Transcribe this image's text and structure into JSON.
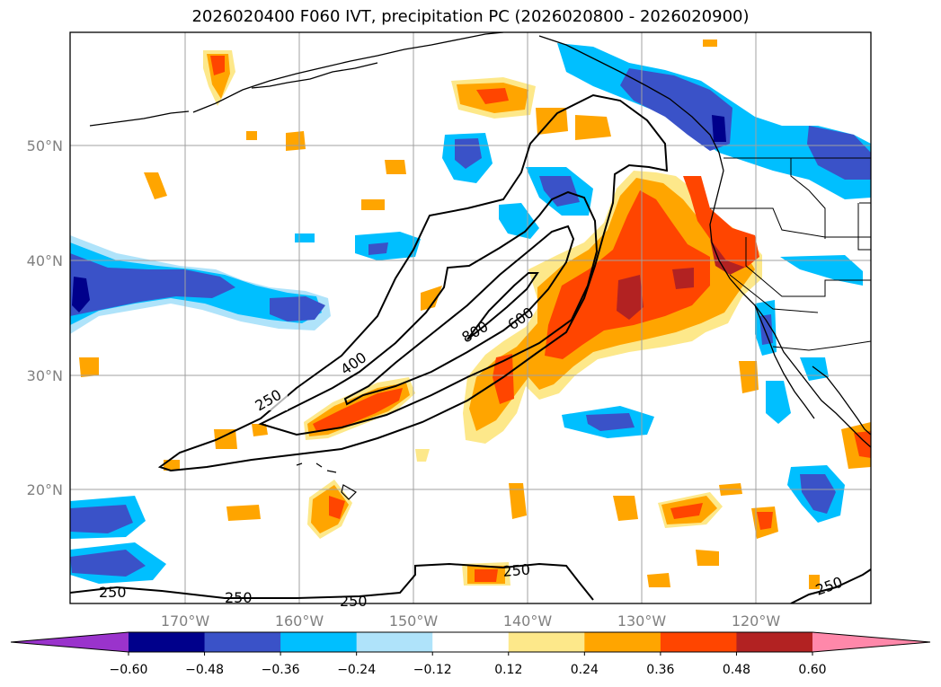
{
  "title": "2026020400 F060 IVT, precipitation PC (2026020800 - 2026020900)",
  "map": {
    "lon_labels": [
      "170°W",
      "160°W",
      "150°W",
      "140°W",
      "130°W",
      "120°W"
    ],
    "lat_labels": [
      "50°N",
      "40°N",
      "30°N",
      "20°N"
    ]
  },
  "ivt_contours": {
    "levels": [
      250,
      400,
      600,
      800
    ],
    "labels": [
      "250",
      "250",
      "250",
      "250",
      "250",
      "250",
      "400",
      "600",
      "800"
    ]
  },
  "colorbar": {
    "tick_labels": [
      "−0.60",
      "−0.48",
      "−0.36",
      "−0.24",
      "−0.12",
      "0.12",
      "0.24",
      "0.36",
      "0.48",
      "0.60"
    ],
    "colors": [
      "#9a33cc",
      "#00008b",
      "#3a52c8",
      "#00bfff",
      "#afe3fa",
      "#ffffff",
      "#fde88a",
      "#ffa500",
      "#ff4500",
      "#b22222",
      "#ff88aa"
    ]
  },
  "colors": {
    "orange_dark": "#ff4500",
    "orange": "#ffa500",
    "yellow": "#fde88a",
    "red": "#b22222",
    "blue_light": "#afe3fa",
    "blue": "#00bfff",
    "blue_mid": "#3a52c8",
    "blue_dark": "#00008b"
  }
}
